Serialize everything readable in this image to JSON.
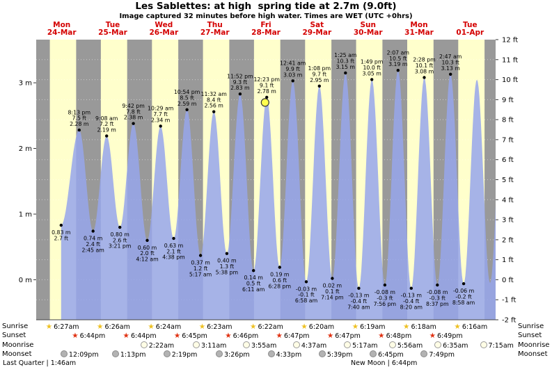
{
  "chart_data": {
    "type": "area",
    "title": "Les Sablettes: at high  spring tide at 2.7m (9.0ft)",
    "subtitle": "Image captured 32 minutes before high water. Times are WET (UTC +0hrs)",
    "x_days": [
      {
        "dow": "Mon",
        "date": "24-Mar"
      },
      {
        "dow": "Tue",
        "date": "25-Mar"
      },
      {
        "dow": "Wed",
        "date": "26-Mar"
      },
      {
        "dow": "Thu",
        "date": "27-Mar"
      },
      {
        "dow": "Fri",
        "date": "28-Mar"
      },
      {
        "dow": "Sat",
        "date": "29-Mar"
      },
      {
        "dow": "Sun",
        "date": "30-Mar"
      },
      {
        "dow": "Mon",
        "date": "31-Mar"
      },
      {
        "dow": "Tue",
        "date": "01-Apr"
      }
    ],
    "hours_total": 216,
    "daylight": {
      "start_hour": 6.42,
      "end_hour": 18.78
    },
    "y_left_ticks": [
      {
        "label": "3 m",
        "value": 3
      },
      {
        "label": "2 m",
        "value": 2
      },
      {
        "label": "1 m",
        "value": 1
      },
      {
        "label": "0 m",
        "value": 0
      }
    ],
    "y_right": {
      "min_ft": -2,
      "max_ft": 12,
      "ticks": [
        "12 ft",
        "11 ft",
        "10 ft",
        "9 ft",
        "8 ft",
        "7 ft",
        "6 ft",
        "5 ft",
        "4 ft",
        "3 ft",
        "2 ft",
        "1 ft",
        "0 ft",
        "-1 ft",
        "-2 ft"
      ]
    },
    "colors": {
      "day_band": "#ffffcc",
      "night_band": "#999999",
      "tide_fill": "rgba(150,166,235,0.85)",
      "day_label": "#d40000",
      "marker_fill": "#ffff4d",
      "grid": "rgba(255,255,255,0.5)",
      "text": "#000000"
    },
    "tide_points": [
      {
        "kind": "start",
        "t": 11.7,
        "m": 0.83,
        "m_label": "0.83 m",
        "ft_label": "2.7 ft"
      },
      {
        "kind": "high",
        "t": 20.22,
        "m": 2.28,
        "time": "8:13 pm",
        "ft_label": "7.5 ft",
        "m_label": "2.28 m"
      },
      {
        "kind": "low",
        "t": 26.75,
        "m": 0.74,
        "m_label": "0.74 m",
        "ft_label": "2.4 ft",
        "time": "2:45 am"
      },
      {
        "kind": "high",
        "t": 33.13,
        "m": 2.19,
        "time": "9:08 am",
        "ft_label": "7.2 ft",
        "m_label": "2.19 m"
      },
      {
        "kind": "low",
        "t": 39.35,
        "m": 0.8,
        "m_label": "0.80 m",
        "ft_label": "2.6 ft",
        "time": "3:21 pm"
      },
      {
        "kind": "high",
        "t": 45.7,
        "m": 2.38,
        "time": "9:42 pm",
        "ft_label": "7.8 ft",
        "m_label": "2.38 m"
      },
      {
        "kind": "low",
        "t": 52.2,
        "m": 0.6,
        "m_label": "0.60 m",
        "ft_label": "2.0 ft",
        "time": "4:12 am"
      },
      {
        "kind": "high",
        "t": 58.48,
        "m": 2.34,
        "time": "10:29 am",
        "ft_label": "7.7 ft",
        "m_label": "2.34 m"
      },
      {
        "kind": "low",
        "t": 64.63,
        "m": 0.63,
        "m_label": "0.63 m",
        "ft_label": "2.1 ft",
        "time": "4:38 pm"
      },
      {
        "kind": "high",
        "t": 70.9,
        "m": 2.59,
        "time": "10:54 pm",
        "ft_label": "8.5 ft",
        "m_label": "2.59 m"
      },
      {
        "kind": "low",
        "t": 77.28,
        "m": 0.37,
        "m_label": "0.37 m",
        "ft_label": "1.2 ft",
        "time": "5:17 am"
      },
      {
        "kind": "high",
        "t": 83.53,
        "m": 2.56,
        "time": "11:32 am",
        "ft_label": "8.4 ft",
        "m_label": "2.56 m"
      },
      {
        "kind": "low",
        "t": 89.63,
        "m": 0.4,
        "m_label": "0.40 m",
        "ft_label": "1.3 ft",
        "time": "5:38 pm"
      },
      {
        "kind": "high",
        "t": 95.87,
        "m": 2.83,
        "time": "11:52 pm",
        "ft_label": "9.3 ft",
        "m_label": "2.83 m"
      },
      {
        "kind": "low",
        "t": 102.18,
        "m": 0.14,
        "m_label": "0.14 m",
        "ft_label": "0.5 ft",
        "time": "6:11 am"
      },
      {
        "kind": "high",
        "t": 108.38,
        "m": 2.78,
        "time": "12:23 pm",
        "ft_label": "9.1 ft",
        "m_label": "2.78 m"
      },
      {
        "kind": "low",
        "t": 114.47,
        "m": 0.19,
        "m_label": "0.19 m",
        "ft_label": "0.6 ft",
        "time": "6:28 pm"
      },
      {
        "kind": "high",
        "t": 120.68,
        "m": 3.03,
        "time": "12:41 am",
        "ft_label": "9.9 ft",
        "m_label": "3.03 m"
      },
      {
        "kind": "low",
        "t": 126.97,
        "m": -0.03,
        "m_label": "-0.03 m",
        "ft_label": "-0.1 ft",
        "time": "6:58 am"
      },
      {
        "kind": "high",
        "t": 133.13,
        "m": 2.95,
        "time": "1:08 pm",
        "ft_label": "9.7 ft",
        "m_label": "2.95 m"
      },
      {
        "kind": "low",
        "t": 139.23,
        "m": 0.02,
        "m_label": "0.02 m",
        "ft_label": "0.1 ft",
        "time": "7:14 pm"
      },
      {
        "kind": "high",
        "t": 145.42,
        "m": 3.15,
        "time": "1:25 am",
        "ft_label": "10.3 ft",
        "m_label": "3.15 m"
      },
      {
        "kind": "low",
        "t": 151.67,
        "m": -0.13,
        "m_label": "-0.13 m",
        "ft_label": "-0.4 ft",
        "time": "7:40 am"
      },
      {
        "kind": "high",
        "t": 157.82,
        "m": 3.05,
        "time": "1:49 pm",
        "ft_label": "10.0 ft",
        "m_label": "3.05 m"
      },
      {
        "kind": "low",
        "t": 163.93,
        "m": -0.08,
        "m_label": "-0.08 m",
        "ft_label": "-0.3 ft",
        "time": "7:56 pm"
      },
      {
        "kind": "high",
        "t": 170.12,
        "m": 3.19,
        "time": "2:07 am",
        "ft_label": "10.5 ft",
        "m_label": "3.19 m"
      },
      {
        "kind": "low",
        "t": 176.33,
        "m": -0.13,
        "m_label": "-0.13 m",
        "ft_label": "-0.4 ft",
        "time": "8:20 am"
      },
      {
        "kind": "high",
        "t": 182.47,
        "m": 3.08,
        "time": "2:28 pm",
        "ft_label": "10.1 ft",
        "m_label": "3.08 m"
      },
      {
        "kind": "low",
        "t": 188.62,
        "m": -0.08,
        "m_label": "-0.08 m",
        "ft_label": "-0.3 ft",
        "time": "8:37 pm"
      },
      {
        "kind": "high",
        "t": 194.78,
        "m": 3.13,
        "time": "2:47 am",
        "ft_label": "10.3 ft",
        "m_label": "3.13 m"
      },
      {
        "kind": "low",
        "t": 200.97,
        "m": -0.06,
        "m_label": "-0.06 m",
        "ft_label": "-0.2 ft",
        "time": "8:58 am"
      },
      {
        "kind": "peak_unlabeled",
        "t": 207.2,
        "m": 3.05
      },
      {
        "kind": "trough_unlabeled",
        "t": 213.4,
        "m": -0.05
      },
      {
        "kind": "virtual",
        "t": 219.6,
        "m": 3.1
      }
    ],
    "current_marker": {
      "t": 107.6,
      "m": 2.7,
      "note": "32 minutes before high water"
    }
  },
  "astro": {
    "rows": [
      {
        "label": "Sunrise",
        "icon": "sunrise-star",
        "entries": [
          {
            "time": "6:27am",
            "pos": 0.0299
          },
          {
            "time": "6:26am",
            "pos": 0.141
          },
          {
            "time": "6:24am",
            "pos": 0.2521
          },
          {
            "time": "6:23am",
            "pos": 0.3632
          },
          {
            "time": "6:22am",
            "pos": 0.4743
          },
          {
            "time": "6:20am",
            "pos": 0.5854
          },
          {
            "time": "6:19am",
            "pos": 0.6965
          },
          {
            "time": "6:18am",
            "pos": 0.8076
          },
          {
            "time": "6:16am",
            "pos": 0.9188
          }
        ]
      },
      {
        "label": "Sunset",
        "icon": "sunset-star",
        "entries": [
          {
            "time": "6:44pm",
            "pos": 0.0867
          },
          {
            "time": "6:44pm",
            "pos": 0.1978
          },
          {
            "time": "6:45pm",
            "pos": 0.3089
          },
          {
            "time": "6:46pm",
            "pos": 0.42
          },
          {
            "time": "6:47pm",
            "pos": 0.5311
          },
          {
            "time": "6:47pm",
            "pos": 0.6422
          },
          {
            "time": "6:48pm",
            "pos": 0.7533
          },
          {
            "time": "6:49pm",
            "pos": 0.8645
          }
        ]
      },
      {
        "label": "Moonrise",
        "icon": "moonrise-circle",
        "entries": [
          {
            "time": "2:22am",
            "pos": 0.236
          },
          {
            "time": "3:11am",
            "pos": 0.35
          },
          {
            "time": "3:55am",
            "pos": 0.459
          },
          {
            "time": "4:37am",
            "pos": 0.568
          },
          {
            "time": "5:17am",
            "pos": 0.679
          },
          {
            "time": "5:56am",
            "pos": 0.777
          },
          {
            "time": "6:35am",
            "pos": 0.876
          },
          {
            "time": "7:15am",
            "pos": 0.975
          }
        ]
      },
      {
        "label": "Moonset",
        "icon": "moonset-circle",
        "entries": [
          {
            "time": "12:09pm",
            "pos": 0.062
          },
          {
            "time": "1:13pm",
            "pos": 0.174
          },
          {
            "time": "2:19pm",
            "pos": 0.286
          },
          {
            "time": "3:26pm",
            "pos": 0.4
          },
          {
            "time": "4:33pm",
            "pos": 0.513
          },
          {
            "time": "5:39pm",
            "pos": 0.624
          },
          {
            "time": "6:45pm",
            "pos": 0.735
          },
          {
            "time": "7:49pm",
            "pos": 0.846
          }
        ]
      }
    ],
    "footer_left": "Last Quarter | 1:46am",
    "footer_center": "New Moon | 6:44pm"
  }
}
